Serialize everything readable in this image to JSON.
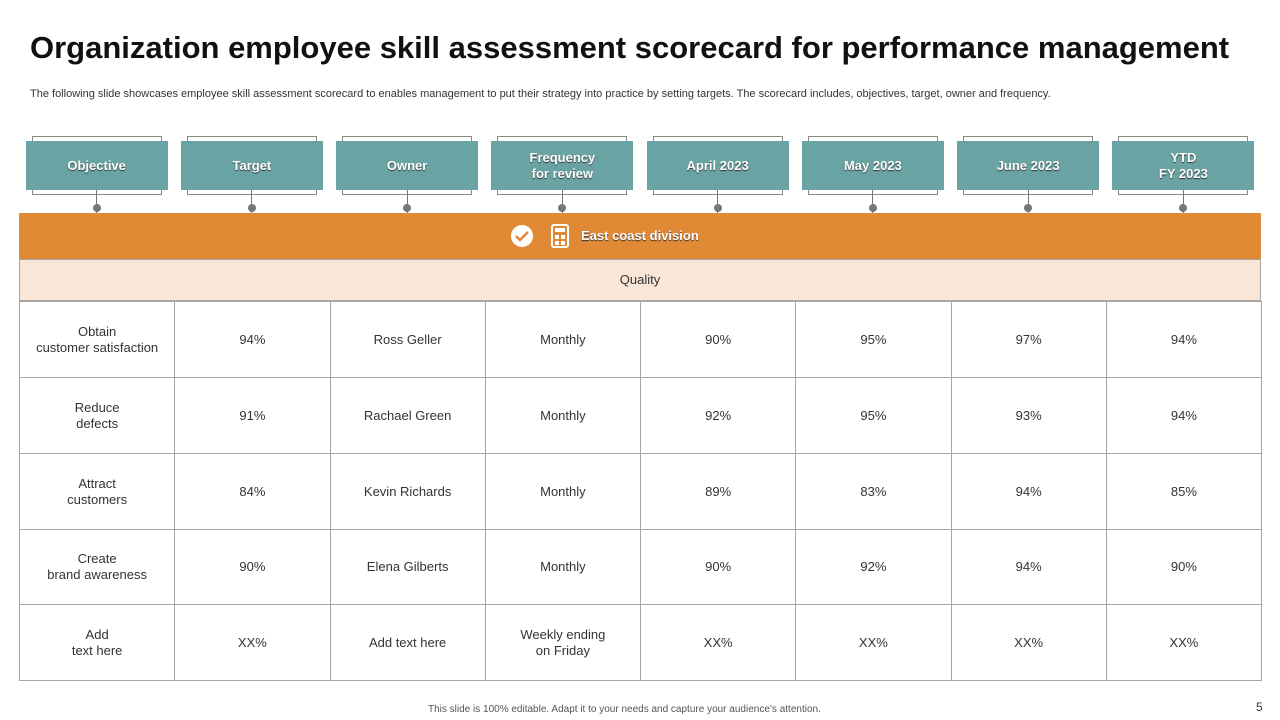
{
  "header": {
    "title": "Organization employee skill assessment scorecard for performance management",
    "subtitle": "The following slide showcases employee skill assessment  scorecard to enables management to put their strategy into practice by setting targets. The scorecard includes, objectives, target, owner and frequency."
  },
  "table": {
    "columns": [
      "Objective",
      "Target",
      "Owner",
      "Frequency\nfor review",
      "April 2023",
      "May 2023",
      "June 2023",
      "YTD\nFY 2023"
    ],
    "division": "East coast division",
    "section": "Quality",
    "rows": [
      [
        "Obtain\ncustomer satisfaction",
        "94%",
        "Ross Geller",
        "Monthly",
        "90%",
        "95%",
        "97%",
        "94%"
      ],
      [
        "Reduce\ndefects",
        "91%",
        "Rachael Green",
        "Monthly",
        "92%",
        "95%",
        "93%",
        "94%"
      ],
      [
        "Attract\ncustomers",
        "84%",
        "Kevin Richards",
        "Monthly",
        "89%",
        "83%",
        "94%",
        "85%"
      ],
      [
        "Create\nbrand awareness",
        "90%",
        "Elena Gilberts",
        "Monthly",
        "90%",
        "92%",
        "94%",
        "90%"
      ],
      [
        "Add\ntext here",
        "XX%",
        "Add text here",
        "Weekly ending\non Friday",
        "XX%",
        "XX%",
        "XX%",
        "XX%"
      ]
    ]
  },
  "footer": {
    "note": "This slide is 100% editable. Adapt it to your needs and capture your audience’s attention.",
    "page": "5"
  }
}
